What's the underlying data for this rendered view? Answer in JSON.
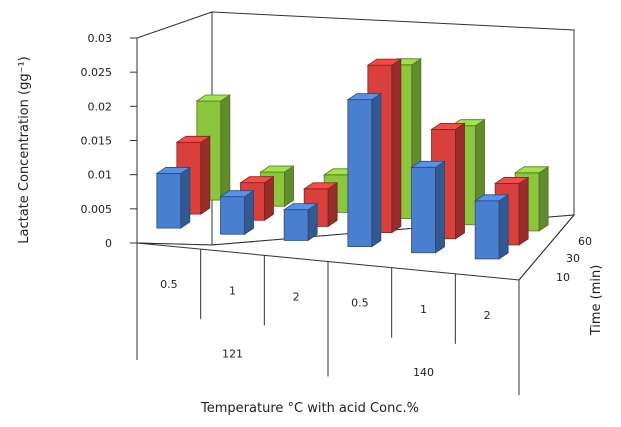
{
  "chart_data": {
    "type": "bar",
    "subtype": "3d-clustered-column",
    "ylabel": "Lactate Concentration (gg⁻¹)",
    "xlabel": "Temperature °C with acid Conc.%",
    "zlabel": "Time (min)",
    "ylim": [
      0,
      0.03
    ],
    "yticks": [
      "0",
      "0.005",
      "0.01",
      "0.015",
      "0.02",
      "0.025",
      "0.03"
    ],
    "categories": [
      "0.5",
      "1",
      "2",
      "0.5",
      "1",
      "2"
    ],
    "category_groups": [
      {
        "label": "121",
        "span": [
          0,
          2
        ]
      },
      {
        "label": "140",
        "span": [
          3,
          5
        ]
      }
    ],
    "series": [
      {
        "name": "10",
        "color": "#4a7fd0",
        "values": [
          0.008,
          0.0055,
          0.0045,
          0.0215,
          0.0125,
          0.0085
        ]
      },
      {
        "name": "30",
        "color": "#d9403c",
        "values": [
          0.0105,
          0.0055,
          0.0055,
          0.0245,
          0.016,
          0.009
        ]
      },
      {
        "name": "60",
        "color": "#8cc63f",
        "values": [
          0.0145,
          0.005,
          0.0055,
          0.0225,
          0.0145,
          0.0085
        ]
      }
    ],
    "grid": false
  }
}
